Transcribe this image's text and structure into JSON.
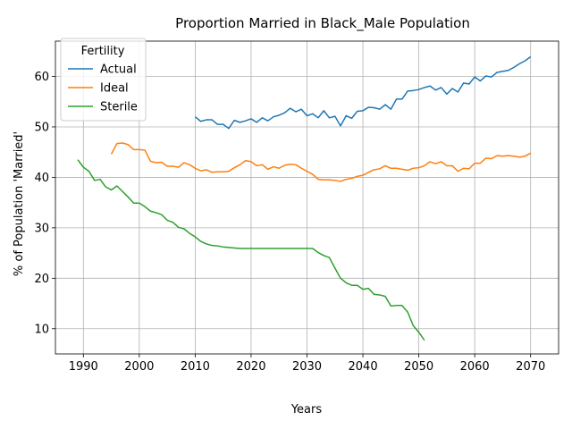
{
  "chart_data": {
    "type": "line",
    "title": "Proportion Married in Black_Male Population",
    "xlabel": "Years",
    "ylabel": "% of Population 'Married'",
    "xlim": [
      1985,
      2075
    ],
    "ylim": [
      5,
      67
    ],
    "xticks": [
      1990,
      2000,
      2010,
      2020,
      2030,
      2040,
      2050,
      2060,
      2070
    ],
    "yticks": [
      10,
      20,
      30,
      40,
      50,
      60
    ],
    "grid": true,
    "legend": {
      "title": "Fertility",
      "placement": "top-left"
    },
    "series": [
      {
        "name": "Actual",
        "color": "#1f77b4",
        "x": [
          2010,
          2011,
          2012,
          2013,
          2014,
          2015,
          2016,
          2017,
          2018,
          2019,
          2020,
          2021,
          2022,
          2023,
          2024,
          2025,
          2026,
          2027,
          2028,
          2029,
          2030,
          2031,
          2032,
          2033,
          2034,
          2035,
          2036,
          2037,
          2038,
          2039,
          2040,
          2041,
          2042,
          2043,
          2044,
          2045,
          2046,
          2047,
          2048,
          2049,
          2050,
          2051,
          2052,
          2053,
          2054,
          2055,
          2056,
          2057,
          2058,
          2059,
          2060,
          2061,
          2062,
          2063,
          2064,
          2065,
          2066,
          2067,
          2068,
          2069,
          2070
        ],
        "y": [
          52.0,
          51.1,
          51.4,
          51.4,
          50.5,
          50.5,
          49.7,
          51.3,
          50.9,
          51.2,
          51.6,
          50.9,
          51.8,
          51.2,
          52.0,
          52.3,
          52.8,
          53.7,
          53.0,
          53.5,
          52.2,
          52.6,
          51.8,
          53.2,
          51.8,
          52.1,
          50.2,
          52.2,
          51.7,
          53.1,
          53.2,
          53.9,
          53.8,
          53.5,
          54.4,
          53.5,
          55.5,
          55.5,
          57.1,
          57.2,
          57.4,
          57.8,
          58.1,
          57.3,
          57.8,
          56.5,
          57.6,
          56.9,
          58.7,
          58.5,
          59.9,
          59.1,
          60.1,
          59.9,
          60.8,
          61.0,
          61.2,
          61.8,
          62.5,
          63.1,
          63.9
        ]
      },
      {
        "name": "Ideal",
        "color": "#ff7f0e",
        "x": [
          1995,
          1996,
          1997,
          1998,
          1999,
          2000,
          2001,
          2002,
          2003,
          2004,
          2005,
          2006,
          2007,
          2008,
          2009,
          2010,
          2011,
          2012,
          2013,
          2014,
          2015,
          2016,
          2017,
          2018,
          2019,
          2020,
          2021,
          2022,
          2023,
          2024,
          2025,
          2026,
          2027,
          2028,
          2029,
          2030,
          2031,
          2032,
          2033,
          2034,
          2035,
          2036,
          2037,
          2038,
          2039,
          2040,
          2041,
          2042,
          2043,
          2044,
          2045,
          2046,
          2047,
          2048,
          2049,
          2050,
          2051,
          2052,
          2053,
          2054,
          2055,
          2056,
          2057,
          2058,
          2059,
          2060,
          2061,
          2062,
          2063,
          2064,
          2065,
          2066,
          2067,
          2068,
          2069,
          2070
        ],
        "y": [
          44.6,
          46.7,
          46.8,
          46.5,
          45.5,
          45.5,
          45.4,
          43.2,
          42.9,
          43.0,
          42.2,
          42.2,
          42.0,
          42.9,
          42.5,
          41.8,
          41.3,
          41.5,
          41.0,
          41.1,
          41.1,
          41.2,
          41.9,
          42.5,
          43.3,
          43.1,
          42.3,
          42.5,
          41.6,
          42.1,
          41.8,
          42.4,
          42.6,
          42.5,
          41.8,
          41.2,
          40.6,
          39.6,
          39.5,
          39.5,
          39.4,
          39.2,
          39.6,
          39.8,
          40.2,
          40.4,
          41.0,
          41.5,
          41.7,
          42.3,
          41.8,
          41.8,
          41.6,
          41.4,
          41.8,
          41.9,
          42.3,
          43.1,
          42.7,
          43.1,
          42.3,
          42.3,
          41.2,
          41.8,
          41.7,
          42.8,
          42.8,
          43.8,
          43.7,
          44.3,
          44.2,
          44.3,
          44.2,
          44.0,
          44.2,
          44.8
        ]
      },
      {
        "name": "Sterile",
        "color": "#2ca02c",
        "x": [
          1989,
          1990,
          1991,
          1992,
          1993,
          1994,
          1995,
          1996,
          1997,
          1998,
          1999,
          2000,
          2001,
          2002,
          2003,
          2004,
          2005,
          2006,
          2007,
          2008,
          2009,
          2010,
          2011,
          2012,
          2013,
          2014,
          2015,
          2016,
          2017,
          2018,
          2019,
          2020,
          2021,
          2022,
          2023,
          2024,
          2025,
          2026,
          2027,
          2028,
          2029,
          2030,
          2031,
          2032,
          2033,
          2034,
          2035,
          2036,
          2037,
          2038,
          2039,
          2040,
          2041,
          2042,
          2043,
          2044,
          2045,
          2046,
          2047,
          2048,
          2049,
          2050,
          2051
        ],
        "y": [
          43.5,
          42.0,
          41.2,
          39.4,
          39.6,
          38.1,
          37.5,
          38.3,
          37.2,
          36.1,
          34.9,
          34.9,
          34.2,
          33.3,
          33.0,
          32.6,
          31.5,
          31.1,
          30.1,
          29.8,
          28.9,
          28.2,
          27.3,
          26.8,
          26.5,
          26.4,
          26.2,
          26.1,
          26.0,
          25.9,
          25.9,
          25.9,
          25.9,
          25.9,
          25.9,
          25.9,
          25.9,
          25.9,
          25.9,
          25.9,
          25.9,
          25.9,
          25.9,
          25.1,
          24.5,
          24.1,
          22.0,
          20.0,
          19.1,
          18.6,
          18.6,
          17.8,
          18.0,
          16.8,
          16.7,
          16.4,
          14.5,
          14.6,
          14.6,
          13.3,
          10.6,
          9.3,
          7.7
        ]
      }
    ]
  }
}
